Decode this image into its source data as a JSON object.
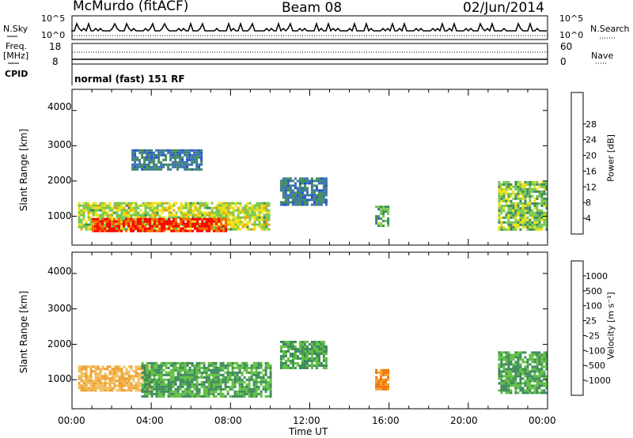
{
  "header": {
    "title": "McMurdo (fitACF)",
    "beam": "Beam 08",
    "date": "02/Jun/2014"
  },
  "noise_panel": {
    "left_label": "N.Sky",
    "left_ticks": [
      "10^5",
      "10^0"
    ],
    "right_ticks": [
      "10^5",
      "10^0"
    ],
    "right_label": "N.Search"
  },
  "freq_panel": {
    "left_label_1": "Freq.",
    "left_label_2": "[MHz]",
    "left_ticks": [
      "18",
      "8"
    ],
    "right_ticks": [
      "60",
      "0"
    ],
    "right_label": "Nave"
  },
  "cpid_panel": {
    "label": "CPID",
    "mode_text": "normal (fast) 151 RF"
  },
  "chart_data": [
    {
      "type": "heatmap",
      "panel": "power",
      "ylabel": "Slant Range [km]",
      "y_ticks": [
        "1000",
        "2000",
        "3000",
        "4000"
      ],
      "x_ticks": [
        "00:00",
        "04:00",
        "08:00",
        "12:00",
        "16:00",
        "20:00",
        "00:00"
      ],
      "xlim_hours": [
        0,
        24
      ],
      "ylim_km": [
        180,
        4600
      ],
      "colorbar": {
        "label": "Power [dB]",
        "ticks": [
          "4",
          "8",
          "12",
          "16",
          "20",
          "24",
          "28"
        ],
        "colors": [
          "#0000ff",
          "#1e50c8",
          "#3a70b0",
          "#3c8a5a",
          "#78c850",
          "#f0e010",
          "#f0a000",
          "#f07000",
          "#ff0000"
        ]
      },
      "echo_regions": [
        {
          "t_start": 0.3,
          "t_end": 10.0,
          "r_min": 600,
          "r_max": 1400,
          "power_db": 18
        },
        {
          "t_start": 1.0,
          "t_end": 7.8,
          "r_min": 580,
          "r_max": 950,
          "power_db": 29
        },
        {
          "t_start": 3.0,
          "t_end": 6.5,
          "r_min": 2300,
          "r_max": 2900,
          "power_db": 10
        },
        {
          "t_start": 10.5,
          "t_end": 12.8,
          "r_min": 1300,
          "r_max": 2100,
          "power_db": 10
        },
        {
          "t_start": 15.3,
          "t_end": 16.0,
          "r_min": 700,
          "r_max": 1300,
          "power_db": 14
        },
        {
          "t_start": 21.5,
          "t_end": 24.0,
          "r_min": 650,
          "r_max": 2000,
          "power_db": 16
        }
      ]
    },
    {
      "type": "heatmap",
      "panel": "velocity",
      "ylabel": "Slant Range [km]",
      "y_ticks": [
        "1000",
        "2000",
        "3000",
        "4000"
      ],
      "x_ticks": [
        "00:00",
        "04:00",
        "08:00",
        "12:00",
        "16:00",
        "20:00",
        "00:00"
      ],
      "xlabel": "Time UT",
      "xlim_hours": [
        0,
        24
      ],
      "ylim_km": [
        180,
        4600
      ],
      "colorbar": {
        "label": "Velocity [m s⁻¹]",
        "ticks": [
          "1000",
          "500",
          "100",
          "25",
          "-25",
          "-100",
          "-500",
          "-1000"
        ],
        "colors": [
          "#2050c0",
          "#3a70b0",
          "#3c8a5a",
          "#60c040",
          "#c0c0c0",
          "#f0c060",
          "#f0a030",
          "#f07000",
          "#ff0000"
        ]
      },
      "echo_regions": [
        {
          "t_start": 0.3,
          "t_end": 4.0,
          "r_min": 700,
          "r_max": 1400,
          "velocity": -100
        },
        {
          "t_start": 3.5,
          "t_end": 10.0,
          "r_min": 500,
          "r_max": 1500,
          "velocity": 100
        },
        {
          "t_start": 10.5,
          "t_end": 12.8,
          "r_min": 1300,
          "r_max": 2100,
          "velocity": 100
        },
        {
          "t_start": 15.3,
          "t_end": 16.0,
          "r_min": 700,
          "r_max": 1300,
          "velocity": -500
        },
        {
          "t_start": 21.5,
          "t_end": 24.0,
          "r_min": 650,
          "r_max": 1800,
          "velocity": 100
        }
      ]
    }
  ]
}
